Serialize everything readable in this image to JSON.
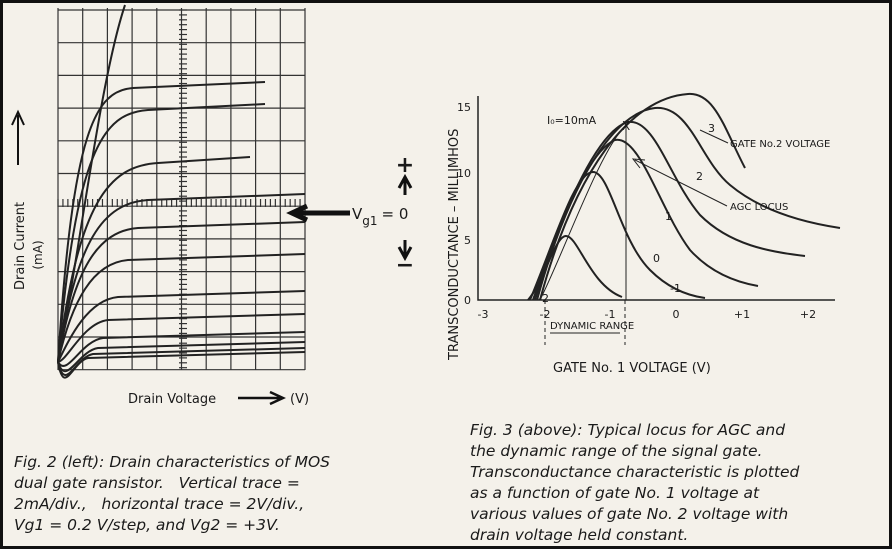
{
  "figure_left": {
    "y_label": "Drain Current",
    "y_unit": "(mA)",
    "x_label": "Drain Voltage",
    "x_unit": "(V)",
    "gate_label": {
      "v": "V",
      "sub": "g1",
      "rest": "= 0"
    },
    "plus": "+",
    "minus": "−",
    "caption": [
      "Fig. 2 (left): Drain characteristics of MOS",
      "dual gate ransistor.   Vertical trace =",
      "2mA/div.,   horizontal trace = 2V/div.,",
      "Vg1 = 0.2 V/step, and Vg2 = +3V."
    ]
  },
  "figure_right": {
    "y_label": "TRANSCONDUCTANCE – MILLIMHOS",
    "x_label": "GATE No. 1 VOLTAGE (V)",
    "y_ticks": [
      "0",
      "5",
      "10",
      "15"
    ],
    "x_ticks": [
      "-3",
      "-2",
      "-1",
      "0",
      "+1",
      "+2"
    ],
    "curve_labels": [
      "-2",
      "-1",
      "0",
      "1",
      "2",
      "3"
    ],
    "id_label": "I₀=10mA",
    "x_marker": "X",
    "gate2_label": "GATE No.2 VOLTAGE",
    "agc_label": "AGC LOCUS",
    "dynamic_range": "DYNAMIC RANGE",
    "caption": [
      "Fig. 3 (above): Typical locus for AGC and",
      "the dynamic range of the signal gate.",
      "Transconductance characteristic is plotted",
      "as a function of gate No. 1 voltage at",
      "various values of gate No. 2 voltage with",
      "drain voltage held constant."
    ]
  }
}
